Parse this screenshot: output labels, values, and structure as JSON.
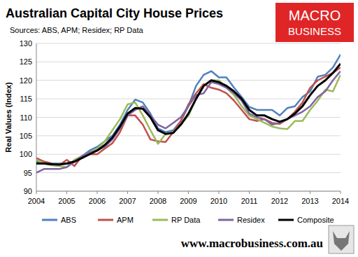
{
  "chart_data": {
    "type": "line",
    "title": "Australian Capital City House Prices",
    "subtitle": "Sources: ABS, APM; Residex; RP Data",
    "y_label": "Real Values (Index)",
    "annotations": [
      "MACRO",
      "BUSINESS",
      "www.macrobusiness.com.au"
    ],
    "x": [
      2004,
      2004.25,
      2004.5,
      2004.75,
      2005,
      2005.25,
      2005.5,
      2005.75,
      2006,
      2006.25,
      2006.5,
      2006.75,
      2007,
      2007.25,
      2007.5,
      2007.75,
      2008,
      2008.25,
      2008.5,
      2008.75,
      2009,
      2009.25,
      2009.5,
      2009.75,
      2010,
      2010.25,
      2010.5,
      2010.75,
      2011,
      2011.25,
      2011.5,
      2011.75,
      2012,
      2012.25,
      2012.5,
      2012.75,
      2013,
      2013.25,
      2013.5,
      2013.75,
      2014
    ],
    "series": [
      {
        "name": "ABS",
        "color": "#4f81bd",
        "values": [
          98,
          98,
          97.5,
          97.5,
          97.5,
          98,
          99.5,
          101,
          102,
          103.5,
          105,
          108,
          112,
          114.8,
          114,
          111,
          107,
          106,
          106.5,
          109,
          113,
          118.5,
          121.5,
          122.5,
          120.8,
          120.8,
          118,
          115.5,
          112.8,
          112,
          112,
          112,
          110.5,
          112.5,
          113,
          115.5,
          117,
          121,
          121.5,
          123.5,
          127
        ]
      },
      {
        "name": "APM",
        "color": "#c0504d",
        "values": [
          99,
          98,
          97.5,
          97,
          98.5,
          96.8,
          99.5,
          100,
          100,
          101.5,
          103,
          106,
          110.5,
          110.5,
          108,
          104,
          103.5,
          103.3,
          106,
          109,
          113.5,
          116.5,
          119,
          118,
          117.5,
          116.5,
          114.5,
          112,
          109.5,
          109,
          109.5,
          108.5,
          108.2,
          109.5,
          111.5,
          114,
          118,
          120,
          121,
          122,
          123.5
        ]
      },
      {
        "name": "RP Data",
        "color": "#9bbb59",
        "values": [
          98.5,
          97.5,
          97,
          96.8,
          96.5,
          98.5,
          99.5,
          100.5,
          101.5,
          103.5,
          106.5,
          109.5,
          113.5,
          114,
          110.5,
          106.5,
          102.8,
          105.5,
          106,
          108,
          110.5,
          115,
          118.5,
          120,
          120,
          118,
          116,
          113,
          110.5,
          109.5,
          108.5,
          107.5,
          107,
          106.8,
          109,
          109,
          112,
          114.5,
          117.5,
          117,
          121.5
        ]
      },
      {
        "name": "Residex",
        "color": "#8064a2",
        "values": [
          95,
          96,
          96,
          96,
          96.5,
          98,
          99.5,
          100.5,
          101,
          102,
          104,
          107,
          110.5,
          112,
          113,
          110.5,
          108,
          107,
          108.5,
          110,
          113,
          116,
          116.5,
          119.5,
          119,
          118,
          116.5,
          114.5,
          111,
          110,
          109.5,
          108,
          108.5,
          109.5,
          110.5,
          111.5,
          113,
          115.5,
          117,
          120,
          122.5
        ]
      },
      {
        "name": "Composite",
        "color": "#000000",
        "values": [
          97.5,
          97.5,
          97.3,
          97.2,
          97.5,
          98,
          99,
          100,
          101,
          102.5,
          104.5,
          107.5,
          111,
          112.5,
          112.3,
          110,
          106.5,
          105.5,
          105.8,
          108,
          111,
          115,
          118.5,
          120,
          119.5,
          118.5,
          117,
          115,
          112,
          110.5,
          110.5,
          109.5,
          108.8,
          109.5,
          111,
          113,
          116,
          118.5,
          120,
          122,
          124.5
        ]
      }
    ],
    "xlim": [
      2004,
      2014
    ],
    "xticks": [
      2004,
      2005,
      2006,
      2007,
      2008,
      2009,
      2010,
      2011,
      2012,
      2013,
      2014
    ],
    "ylim": [
      90,
      130
    ],
    "yticks": [
      90,
      95,
      100,
      105,
      110,
      115,
      120,
      125,
      130
    ],
    "grid": true,
    "legend": "bottom"
  }
}
